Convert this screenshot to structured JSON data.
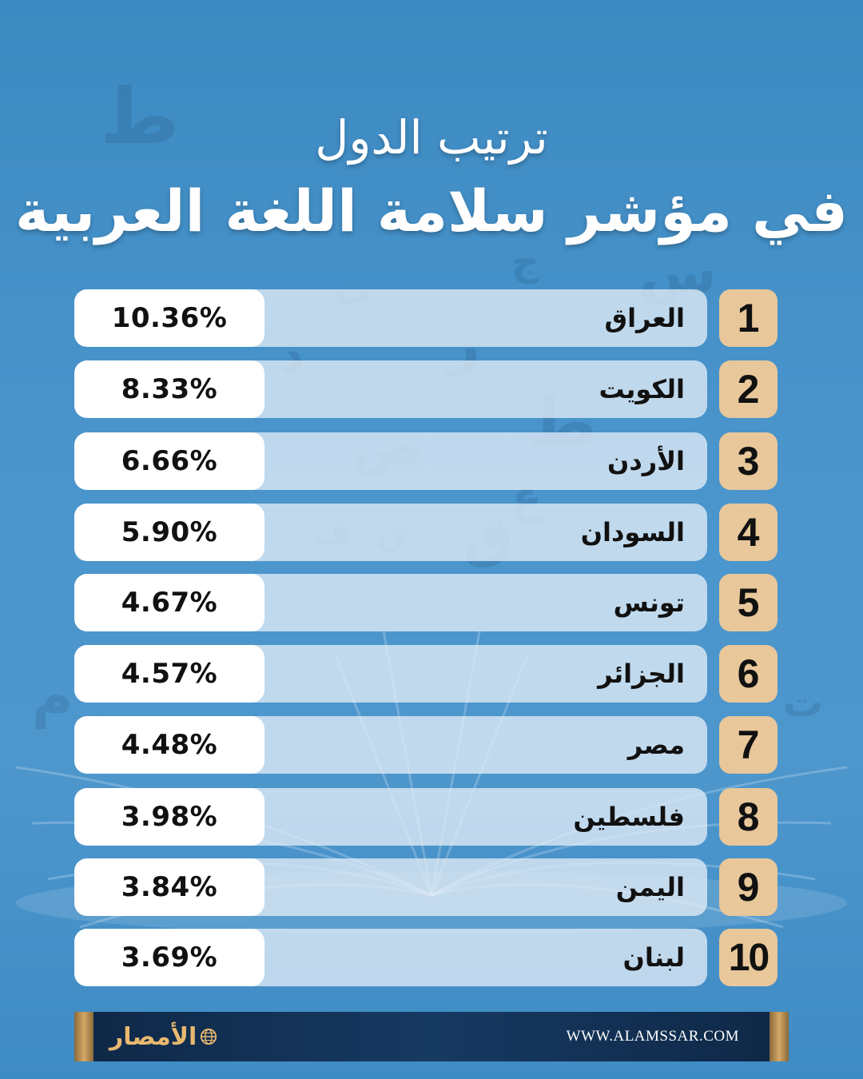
{
  "title": {
    "line1": "ترتيب الدول",
    "line2": "في مؤشر سلامة اللغة العربية"
  },
  "rows": [
    {
      "rank": "1",
      "country": "العراق",
      "percent": "10.36%"
    },
    {
      "rank": "2",
      "country": "الكويت",
      "percent": "8.33%"
    },
    {
      "rank": "3",
      "country": "الأردن",
      "percent": "6.66%"
    },
    {
      "rank": "4",
      "country": "السودان",
      "percent": "5.90%"
    },
    {
      "rank": "5",
      "country": "تونس",
      "percent": "4.67%"
    },
    {
      "rank": "6",
      "country": "الجزائر",
      "percent": "4.57%"
    },
    {
      "rank": "7",
      "country": "مصر",
      "percent": "4.48%"
    },
    {
      "rank": "8",
      "country": "فلسطين",
      "percent": "3.98%"
    },
    {
      "rank": "9",
      "country": "اليمن",
      "percent": "3.84%"
    },
    {
      "rank": "10",
      "country": "لبنان",
      "percent": "3.69%"
    }
  ],
  "footer": {
    "logo_text": "الأمصار",
    "website": "WWW.ALAMSSAR.COM"
  },
  "colors": {
    "background": "#4a95cc",
    "rank_badge": "#e8c79a",
    "footer": "#173a62",
    "accent_gold": "#d4a765"
  },
  "background_letters": [
    "ط",
    "س",
    "ج",
    "ر",
    "د",
    "ت",
    "ض",
    "ق",
    "ف",
    "ع",
    "ط",
    "م",
    "ن",
    "ت"
  ]
}
